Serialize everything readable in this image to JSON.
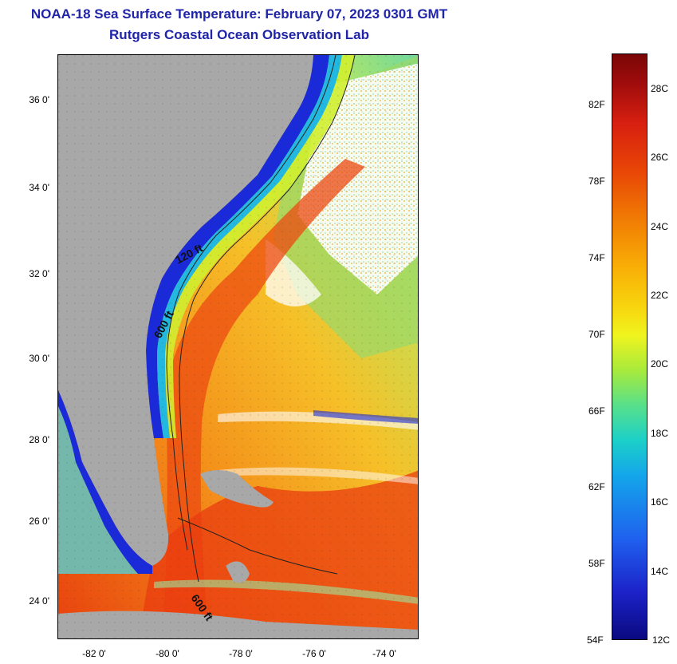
{
  "title": {
    "line1": "NOAA-18 Sea Surface Temperature:  February 07, 2023 0301 GMT",
    "line2": "Rutgers Coastal Ocean Observation Lab"
  },
  "map": {
    "lat_labels": [
      "36 0'",
      "34 0'",
      "32 0'",
      "30 0'",
      "28 0'",
      "26 0'",
      "24 0'"
    ],
    "lon_labels": [
      "-82 0'",
      "-80 0'",
      "-78 0'",
      "-76 0'",
      "-74 0'"
    ],
    "contour_labels": [
      "120 ft",
      "600 ft",
      "600 ft"
    ],
    "colors": {
      "land": "#a8a8a8",
      "warm_water": "#f28a12",
      "gulf_stream": "#e83a10",
      "cool_coastal": "#1a2ad8",
      "cloud": "#ffffff"
    }
  },
  "colorbar": {
    "fahrenheit": [
      "82F",
      "78F",
      "74F",
      "70F",
      "66F",
      "62F",
      "58F",
      "54F"
    ],
    "celsius": [
      "28C",
      "26C",
      "24C",
      "22C",
      "20C",
      "18C",
      "16C",
      "14C",
      "12C"
    ]
  }
}
